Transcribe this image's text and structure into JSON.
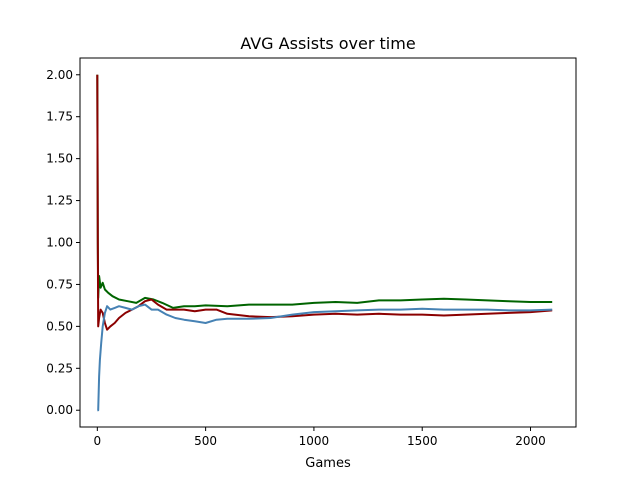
{
  "chart_data": {
    "type": "line",
    "title": "AVG Assists over time",
    "xlabel": "Games",
    "ylabel": "",
    "xlim": [
      -80,
      2210
    ],
    "ylim": [
      -0.1,
      2.1
    ],
    "xticks": [
      0,
      500,
      1000,
      1500,
      2000
    ],
    "xtick_labels": [
      "0",
      "500",
      "1000",
      "1500",
      "2000"
    ],
    "yticks": [
      0.0,
      0.25,
      0.5,
      0.75,
      1.0,
      1.25,
      1.5,
      1.75,
      2.0
    ],
    "ytick_labels": [
      "0.00",
      "0.25",
      "0.50",
      "0.75",
      "1.00",
      "1.25",
      "1.50",
      "1.75",
      "2.00"
    ],
    "grid": false,
    "series": [
      {
        "color": "#006400",
        "points": [
          [
            0,
            2.0
          ],
          [
            2,
            1.0
          ],
          [
            4,
            0.67
          ],
          [
            8,
            0.8
          ],
          [
            15,
            0.73
          ],
          [
            25,
            0.76
          ],
          [
            35,
            0.72
          ],
          [
            50,
            0.7
          ],
          [
            70,
            0.68
          ],
          [
            100,
            0.66
          ],
          [
            140,
            0.65
          ],
          [
            180,
            0.64
          ],
          [
            220,
            0.67
          ],
          [
            260,
            0.66
          ],
          [
            300,
            0.64
          ],
          [
            350,
            0.61
          ],
          [
            400,
            0.62
          ],
          [
            450,
            0.62
          ],
          [
            500,
            0.625
          ],
          [
            600,
            0.62
          ],
          [
            700,
            0.63
          ],
          [
            800,
            0.63
          ],
          [
            900,
            0.63
          ],
          [
            1000,
            0.64
          ],
          [
            1100,
            0.645
          ],
          [
            1200,
            0.64
          ],
          [
            1300,
            0.655
          ],
          [
            1400,
            0.655
          ],
          [
            1500,
            0.66
          ],
          [
            1600,
            0.665
          ],
          [
            1700,
            0.66
          ],
          [
            1800,
            0.655
          ],
          [
            1900,
            0.65
          ],
          [
            2000,
            0.645
          ],
          [
            2100,
            0.645
          ]
        ]
      },
      {
        "color": "#8b0000",
        "points": [
          [
            0,
            2.0
          ],
          [
            2,
            1.0
          ],
          [
            4,
            0.5
          ],
          [
            8,
            0.55
          ],
          [
            15,
            0.6
          ],
          [
            25,
            0.58
          ],
          [
            35,
            0.52
          ],
          [
            45,
            0.48
          ],
          [
            60,
            0.5
          ],
          [
            80,
            0.52
          ],
          [
            100,
            0.55
          ],
          [
            130,
            0.58
          ],
          [
            160,
            0.6
          ],
          [
            190,
            0.62
          ],
          [
            220,
            0.65
          ],
          [
            250,
            0.66
          ],
          [
            280,
            0.63
          ],
          [
            320,
            0.6
          ],
          [
            360,
            0.6
          ],
          [
            400,
            0.6
          ],
          [
            450,
            0.59
          ],
          [
            500,
            0.6
          ],
          [
            550,
            0.6
          ],
          [
            600,
            0.575
          ],
          [
            700,
            0.56
          ],
          [
            800,
            0.555
          ],
          [
            900,
            0.56
          ],
          [
            1000,
            0.57
          ],
          [
            1100,
            0.575
          ],
          [
            1200,
            0.57
          ],
          [
            1300,
            0.575
          ],
          [
            1400,
            0.57
          ],
          [
            1500,
            0.57
          ],
          [
            1600,
            0.565
          ],
          [
            1700,
            0.57
          ],
          [
            1800,
            0.575
          ],
          [
            1900,
            0.58
          ],
          [
            2000,
            0.585
          ],
          [
            2100,
            0.595
          ]
        ]
      },
      {
        "color": "#4682b4",
        "points": [
          [
            0,
            0.0
          ],
          [
            4,
            0.0
          ],
          [
            8,
            0.2
          ],
          [
            12,
            0.3
          ],
          [
            18,
            0.4
          ],
          [
            25,
            0.5
          ],
          [
            35,
            0.58
          ],
          [
            45,
            0.62
          ],
          [
            60,
            0.6
          ],
          [
            80,
            0.61
          ],
          [
            100,
            0.62
          ],
          [
            130,
            0.61
          ],
          [
            160,
            0.6
          ],
          [
            190,
            0.62
          ],
          [
            220,
            0.63
          ],
          [
            250,
            0.6
          ],
          [
            280,
            0.6
          ],
          [
            320,
            0.57
          ],
          [
            360,
            0.55
          ],
          [
            400,
            0.54
          ],
          [
            450,
            0.53
          ],
          [
            500,
            0.52
          ],
          [
            550,
            0.54
          ],
          [
            600,
            0.545
          ],
          [
            700,
            0.545
          ],
          [
            800,
            0.55
          ],
          [
            900,
            0.57
          ],
          [
            1000,
            0.585
          ],
          [
            1100,
            0.59
          ],
          [
            1200,
            0.595
          ],
          [
            1300,
            0.6
          ],
          [
            1400,
            0.6
          ],
          [
            1500,
            0.605
          ],
          [
            1600,
            0.6
          ],
          [
            1700,
            0.6
          ],
          [
            1800,
            0.6
          ],
          [
            1900,
            0.595
          ],
          [
            2000,
            0.595
          ],
          [
            2100,
            0.6
          ]
        ]
      }
    ]
  }
}
